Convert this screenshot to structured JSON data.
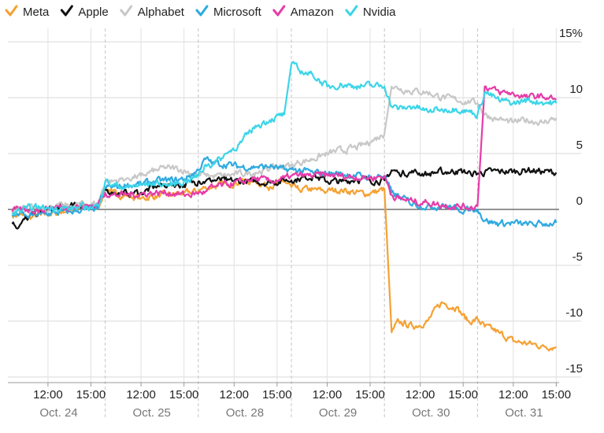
{
  "chart_data": {
    "type": "line",
    "title": "",
    "xlabel": "",
    "ylabel": "",
    "y_unit": "%",
    "ylim": [
      -15.5,
      15.5
    ],
    "y_ticks": [
      15,
      10,
      5,
      0,
      -5,
      -10,
      -15
    ],
    "y_tick_labels": [
      "15%",
      "10",
      "5",
      "0",
      "-5",
      "-10",
      "-15"
    ],
    "grid": true,
    "legend_position": "top-left",
    "x_unit": "trading hours from Oct. 24 09:30 (6.5 h per session)",
    "xlim": [
      -0.3,
      38.2
    ],
    "session_boundaries": [
      6.5,
      13,
      19.5,
      26,
      32.5
    ],
    "x_time_ticks": [
      {
        "x": 2.5,
        "label": "12:00"
      },
      {
        "x": 5.5,
        "label": "15:00"
      },
      {
        "x": 9.0,
        "label": "12:00"
      },
      {
        "x": 12.0,
        "label": "15:00"
      },
      {
        "x": 15.5,
        "label": "12:00"
      },
      {
        "x": 18.5,
        "label": "15:00"
      },
      {
        "x": 22.0,
        "label": "12:00"
      },
      {
        "x": 25.0,
        "label": "15:00"
      },
      {
        "x": 28.5,
        "label": "12:00"
      },
      {
        "x": 31.5,
        "label": "15:00"
      },
      {
        "x": 35.0,
        "label": "12:00"
      },
      {
        "x": 38.0,
        "label": "15:00"
      }
    ],
    "day_labels": [
      {
        "x": 3.25,
        "label": "Oct. 24"
      },
      {
        "x": 9.75,
        "label": "Oct. 25"
      },
      {
        "x": 16.25,
        "label": "Oct. 28"
      },
      {
        "x": 22.75,
        "label": "Oct. 29"
      },
      {
        "x": 29.25,
        "label": "Oct. 30"
      },
      {
        "x": 35.75,
        "label": "Oct. 31"
      }
    ],
    "x": [
      0,
      0.5,
      1,
      2,
      3,
      4,
      5,
      6,
      6.5,
      7,
      8,
      9,
      10,
      11,
      12,
      13,
      13.5,
      14,
      15,
      16,
      17,
      18,
      19,
      19.5,
      20,
      21,
      22,
      23,
      24,
      25,
      26,
      26.5,
      27,
      28,
      29,
      30,
      31,
      32,
      32.5,
      33,
      34,
      35,
      36,
      37,
      38
    ],
    "series": [
      {
        "name": "Meta",
        "color": "#f5a132",
        "values": [
          -0.5,
          -0.5,
          -0.8,
          -0.5,
          -0.3,
          0,
          0.2,
          0.1,
          2.0,
          1.5,
          1.2,
          1.0,
          1.2,
          1.3,
          1.5,
          1.6,
          2.0,
          2.0,
          2.3,
          2.5,
          2.5,
          2.0,
          2.5,
          2.0,
          1.8,
          1.8,
          1.6,
          1.8,
          1.5,
          1.4,
          1.8,
          -11.0,
          -10.0,
          -10.5,
          -10.0,
          -8.3,
          -8.8,
          -10.2,
          -9.8,
          -10.5,
          -11.0,
          -11.8,
          -12.0,
          -12.2,
          -12.3
        ]
      },
      {
        "name": "Apple",
        "color": "#111111",
        "values": [
          -1.3,
          -1.5,
          -0.8,
          -0.2,
          0.1,
          0.3,
          0.3,
          0.3,
          1.8,
          1.5,
          1.5,
          1.5,
          2.0,
          2.3,
          2.2,
          2.5,
          2.5,
          2.6,
          2.6,
          2.5,
          2.5,
          2.4,
          2.6,
          2.6,
          2.7,
          3.0,
          2.5,
          2.5,
          2.7,
          2.6,
          2.6,
          3.5,
          3.3,
          3.3,
          3.2,
          3.4,
          3.4,
          3.3,
          3.2,
          3.3,
          3.4,
          3.4,
          3.5,
          3.4,
          3.3
        ]
      },
      {
        "name": "Alphabet",
        "color": "#c8c8c8",
        "values": [
          -0.3,
          0.0,
          0.2,
          0.1,
          0.2,
          0.3,
          0.5,
          0.5,
          2.5,
          2.5,
          2.8,
          3.0,
          3.5,
          3.8,
          3.5,
          3.0,
          3.2,
          3.0,
          3.0,
          3.2,
          3.3,
          3.6,
          3.9,
          3.9,
          4.2,
          4.5,
          5.0,
          5.3,
          5.5,
          6.0,
          6.8,
          11.0,
          10.8,
          10.6,
          10.5,
          10.0,
          9.8,
          9.6,
          9.5,
          8.5,
          8.0,
          7.8,
          8.0,
          7.8,
          8.2
        ]
      },
      {
        "name": "Microsoft",
        "color": "#2eaae0",
        "values": [
          -0.6,
          -0.4,
          -0.6,
          -0.4,
          -0.3,
          -0.2,
          0.0,
          0.1,
          2.0,
          2.0,
          2.1,
          2.3,
          2.5,
          2.6,
          2.7,
          3.5,
          4.5,
          4.2,
          4.0,
          3.8,
          3.8,
          3.8,
          3.6,
          3.6,
          3.5,
          3.3,
          3.2,
          3.2,
          3.0,
          2.9,
          3.0,
          1.5,
          1.2,
          0.5,
          0.3,
          0.3,
          0.1,
          -0.1,
          0.0,
          -1.0,
          -1.3,
          -1.2,
          -1.4,
          -1.3,
          -1.2
        ]
      },
      {
        "name": "Amazon",
        "color": "#e63ca8",
        "values": [
          -0.2,
          0.0,
          0.0,
          0.0,
          0.2,
          0.2,
          0.3,
          0.4,
          1.5,
          1.3,
          1.3,
          1.4,
          1.5,
          1.5,
          1.3,
          1.4,
          1.6,
          2.0,
          2.2,
          2.5,
          2.8,
          2.5,
          2.8,
          3.0,
          3.0,
          3.0,
          3.1,
          3.0,
          2.9,
          2.8,
          3.0,
          1.3,
          1.0,
          0.7,
          0.6,
          0.4,
          0.3,
          0.2,
          0.3,
          11.0,
          10.5,
          10.4,
          10.0,
          10.2,
          9.8
        ]
      },
      {
        "name": "Nvidia",
        "color": "#3cd5e8",
        "values": [
          -0.3,
          -0.1,
          0.1,
          0.2,
          0.1,
          0.1,
          0.2,
          0.3,
          2.5,
          2.2,
          2.0,
          2.2,
          2.3,
          2.2,
          2.5,
          3.0,
          4.0,
          4.0,
          5.0,
          6.0,
          7.5,
          8.0,
          8.5,
          13.0,
          12.5,
          12.0,
          11.0,
          11.2,
          11.0,
          11.1,
          11.0,
          9.2,
          9.0,
          9.2,
          8.8,
          9.0,
          9.0,
          8.7,
          8.5,
          10.5,
          9.8,
          9.5,
          9.8,
          9.6,
          9.5
        ]
      }
    ]
  }
}
